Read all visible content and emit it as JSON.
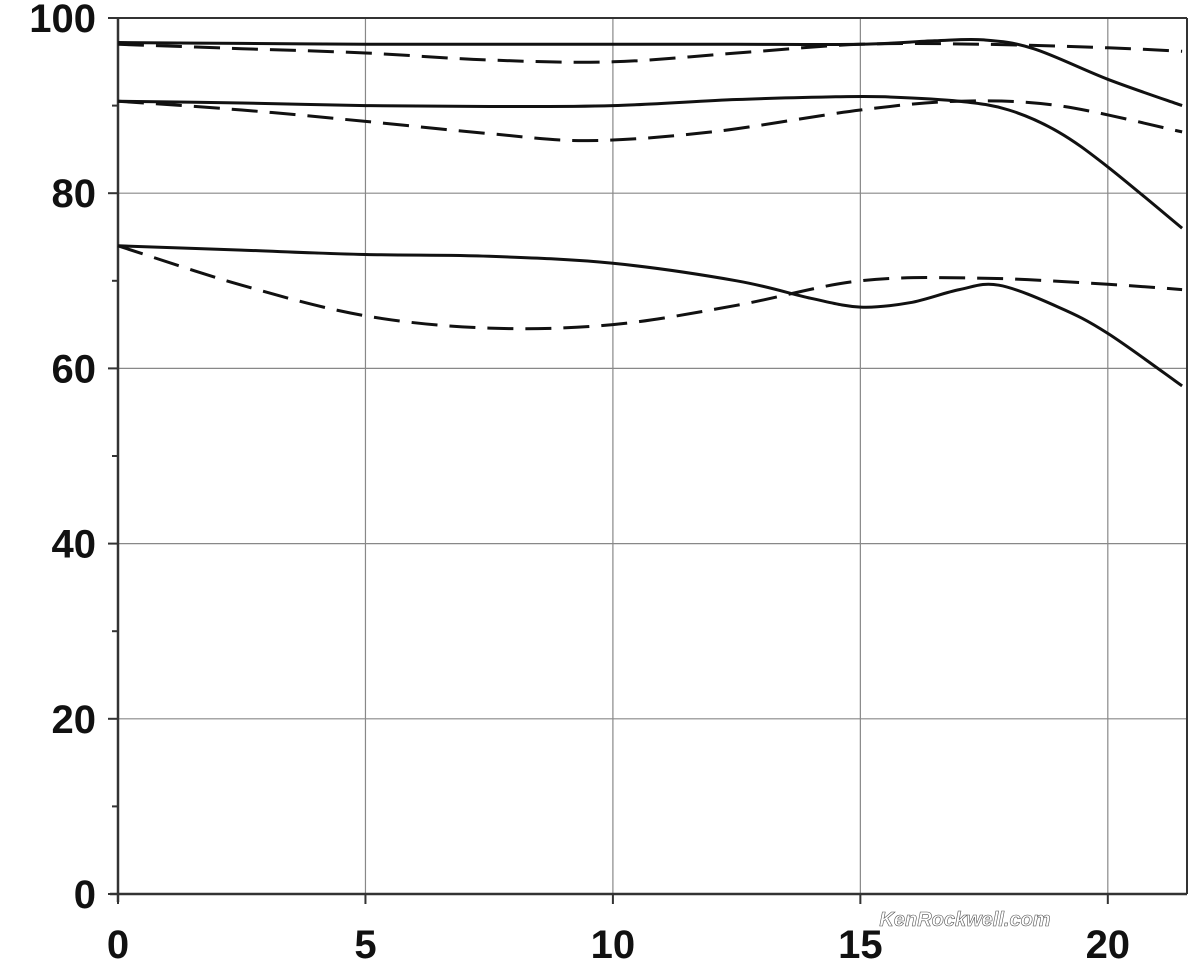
{
  "chart_data": {
    "type": "line",
    "title": "",
    "xlabel": "",
    "ylabel": "",
    "xlim": [
      0,
      21.6
    ],
    "ylim": [
      0,
      100
    ],
    "x_ticks": [
      0,
      5,
      10,
      15,
      20
    ],
    "y_ticks": [
      0,
      20,
      40,
      60,
      80,
      100
    ],
    "grid": true,
    "legend": "none",
    "watermark": "KenRockwell.com",
    "colors": {
      "line": "#111111",
      "grid": "#888888",
      "axis": "#333333",
      "background": "#ffffff"
    },
    "series": [
      {
        "style": "solid",
        "x": [
          0,
          2.5,
          5,
          7.5,
          10,
          12.5,
          15,
          16.5,
          17.5,
          18.5,
          20,
          21.5
        ],
        "values": [
          97.2,
          97.1,
          97,
          97,
          97,
          97,
          97,
          97.4,
          97.5,
          96.5,
          93,
          90
        ]
      },
      {
        "style": "dashed",
        "x": [
          0,
          2.5,
          5,
          7.5,
          10,
          12.5,
          15,
          17.5,
          20,
          21.5
        ],
        "values": [
          97,
          96.5,
          96,
          95.2,
          95,
          96,
          97,
          97,
          96.6,
          96.2
        ]
      },
      {
        "style": "solid",
        "x": [
          0,
          2.5,
          5,
          7.5,
          10,
          12.5,
          14.5,
          15.5,
          17,
          18,
          19,
          20,
          21.5
        ],
        "values": [
          90.5,
          90.3,
          90,
          89.9,
          90,
          90.7,
          91,
          91,
          90.5,
          89.5,
          87,
          83,
          76
        ]
      },
      {
        "style": "dashed",
        "x": [
          0,
          2.5,
          5,
          7.5,
          9.5,
          12,
          15,
          17,
          19,
          21.5
        ],
        "values": [
          90.5,
          89.5,
          88.2,
          86.8,
          86,
          87,
          89.5,
          90.5,
          90,
          87
        ]
      },
      {
        "style": "solid",
        "x": [
          0,
          2.5,
          5,
          7.5,
          10,
          12.5,
          14,
          15,
          16,
          17,
          17.8,
          19,
          20,
          21.5
        ],
        "values": [
          74,
          73.5,
          73,
          72.8,
          72,
          70,
          68,
          67,
          67.5,
          69,
          69.5,
          67,
          64,
          58
        ]
      },
      {
        "style": "dashed",
        "x": [
          0,
          2.5,
          5,
          7.5,
          10,
          12.5,
          15,
          17.5,
          20,
          21.5
        ],
        "values": [
          74,
          69.5,
          66,
          64.6,
          65,
          67.2,
          70,
          70.3,
          69.6,
          69
        ]
      }
    ]
  }
}
